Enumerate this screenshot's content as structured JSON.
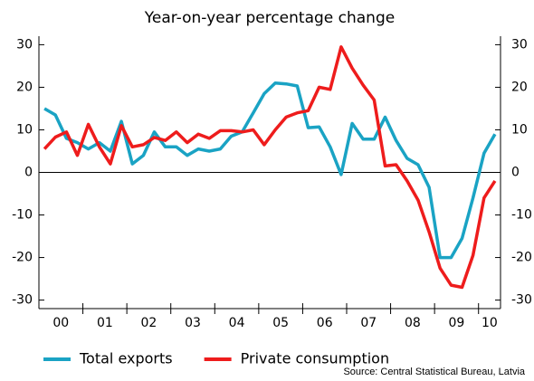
{
  "chart_data": {
    "type": "line",
    "subtitle": "Year-on-year percentage change",
    "source": "Source: Central Statistical Bureau, Latvia",
    "x": [
      2000.125,
      2000.375,
      2000.625,
      2000.875,
      2001.125,
      2001.375,
      2001.625,
      2001.875,
      2002.125,
      2002.375,
      2002.625,
      2002.875,
      2003.125,
      2003.375,
      2003.625,
      2003.875,
      2004.125,
      2004.375,
      2004.625,
      2004.875,
      2005.125,
      2005.375,
      2005.625,
      2005.875,
      2006.125,
      2006.375,
      2006.625,
      2006.875,
      2007.125,
      2007.375,
      2007.625,
      2007.875,
      2008.125,
      2008.375,
      2008.625,
      2008.875,
      2009.125,
      2009.375,
      2009.625,
      2009.875,
      2010.125,
      2010.375
    ],
    "xlim": [
      2000,
      2010.5
    ],
    "xticks": [
      {
        "value": 2000.5,
        "label": "00"
      },
      {
        "value": 2001.5,
        "label": "01"
      },
      {
        "value": 2002.5,
        "label": "02"
      },
      {
        "value": 2003.5,
        "label": "03"
      },
      {
        "value": 2004.5,
        "label": "04"
      },
      {
        "value": 2005.5,
        "label": "05"
      },
      {
        "value": 2006.5,
        "label": "06"
      },
      {
        "value": 2007.5,
        "label": "07"
      },
      {
        "value": 2008.5,
        "label": "08"
      },
      {
        "value": 2009.5,
        "label": "09"
      },
      {
        "value": 2010.25,
        "label": "10"
      }
    ],
    "ylim": [
      -32,
      32
    ],
    "yticks": [
      -30,
      -20,
      -10,
      0,
      10,
      20,
      30
    ],
    "y2lim": [
      -32,
      32
    ],
    "y2ticks": [
      -30,
      -20,
      -10,
      0,
      10,
      20,
      30
    ],
    "legend": "bottom",
    "series": [
      {
        "name": "Total exports",
        "color": "#1aa3c4",
        "values": [
          15,
          13.5,
          8,
          7,
          5.5,
          7,
          5,
          12,
          2,
          4,
          9.5,
          6,
          6,
          4,
          5.5,
          5,
          5.5,
          8.5,
          9.5,
          14,
          18.5,
          21,
          20.8,
          20.3,
          10.5,
          10.7,
          6,
          -0.5,
          11.5,
          7.8,
          7.8,
          13,
          7.5,
          3.3,
          1.8,
          -3.5,
          -20,
          -20,
          -15.5,
          -6,
          4.5,
          9
        ]
      },
      {
        "name": "Private consumption",
        "color": "#ee1c1c",
        "values": [
          5.5,
          8.3,
          9.5,
          4,
          11.3,
          6,
          2,
          11,
          6,
          6.5,
          8.2,
          7.5,
          9.5,
          7,
          9,
          8,
          9.8,
          9.8,
          9.5,
          10,
          6.5,
          10,
          13,
          14,
          14.5,
          20,
          19.5,
          29.5,
          24.5,
          20.5,
          17,
          1.5,
          1.8,
          -2,
          -6.5,
          -14,
          -22.5,
          -26.5,
          -27,
          -19.5,
          -6,
          -2
        ]
      }
    ]
  }
}
